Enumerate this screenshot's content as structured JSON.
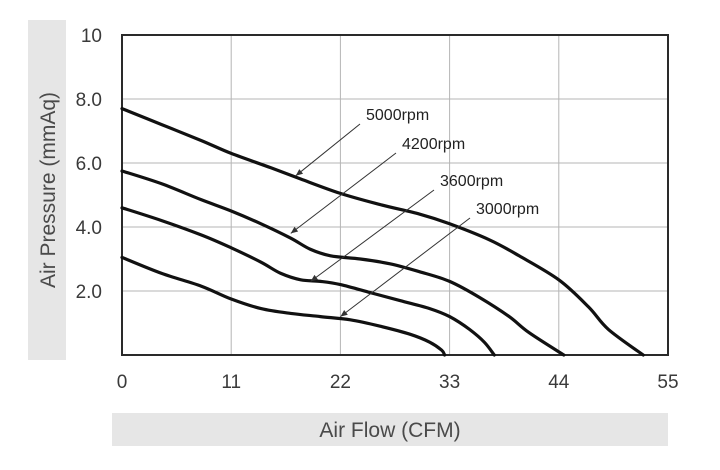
{
  "chart_data": {
    "type": "line",
    "xlabel": "Air Flow (CFM)",
    "ylabel": "Air Pressure (mmAq)",
    "xlim": [
      0,
      55
    ],
    "ylim": [
      0,
      10
    ],
    "x_ticks": [
      {
        "value": 0,
        "label": "0"
      },
      {
        "value": 11,
        "label": "11"
      },
      {
        "value": 22,
        "label": "22"
      },
      {
        "value": 33,
        "label": "33"
      },
      {
        "value": 44,
        "label": "44"
      },
      {
        "value": 55,
        "label": "55"
      }
    ],
    "y_ticks": [
      {
        "value": 2,
        "label": "2.0"
      },
      {
        "value": 4,
        "label": "4.0"
      },
      {
        "value": 6,
        "label": "6.0"
      },
      {
        "value": 8,
        "label": "8.0"
      },
      {
        "value": 10,
        "label": "10"
      }
    ],
    "grid": true,
    "series": [
      {
        "name": "5000rpm",
        "points": [
          [
            0,
            7.7
          ],
          [
            4,
            7.2
          ],
          [
            8,
            6.7
          ],
          [
            11,
            6.3
          ],
          [
            15,
            5.85
          ],
          [
            18,
            5.5
          ],
          [
            22,
            5.05
          ],
          [
            26,
            4.7
          ],
          [
            30,
            4.4
          ],
          [
            33,
            4.1
          ],
          [
            37,
            3.6
          ],
          [
            40,
            3.1
          ],
          [
            44,
            2.35
          ],
          [
            47,
            1.5
          ],
          [
            49,
            0.8
          ],
          [
            52.5,
            0
          ]
        ],
        "annotation": {
          "label": "5000rpm",
          "data_value": [
            17.5,
            5.6
          ]
        }
      },
      {
        "name": "4200rpm",
        "points": [
          [
            0,
            5.75
          ],
          [
            4,
            5.35
          ],
          [
            8,
            4.85
          ],
          [
            11,
            4.5
          ],
          [
            14,
            4.1
          ],
          [
            17,
            3.65
          ],
          [
            19,
            3.3
          ],
          [
            21,
            3.1
          ],
          [
            24,
            3.0
          ],
          [
            27,
            2.85
          ],
          [
            30,
            2.6
          ],
          [
            33,
            2.3
          ],
          [
            36,
            1.8
          ],
          [
            39,
            1.2
          ],
          [
            41,
            0.7
          ],
          [
            44.5,
            0
          ]
        ],
        "annotation": {
          "label": "4200rpm",
          "data_value": [
            17,
            3.8
          ]
        }
      },
      {
        "name": "3600rpm",
        "points": [
          [
            0,
            4.6
          ],
          [
            4,
            4.2
          ],
          [
            8,
            3.75
          ],
          [
            11,
            3.35
          ],
          [
            14,
            2.9
          ],
          [
            16,
            2.55
          ],
          [
            18,
            2.35
          ],
          [
            20,
            2.3
          ],
          [
            22,
            2.2
          ],
          [
            25,
            1.95
          ],
          [
            28,
            1.7
          ],
          [
            31,
            1.45
          ],
          [
            33,
            1.2
          ],
          [
            35,
            0.8
          ],
          [
            36.5,
            0.4
          ],
          [
            37.5,
            0
          ]
        ],
        "annotation": {
          "label": "3600rpm",
          "data_value": [
            19,
            2.3
          ]
        }
      },
      {
        "name": "3000rpm",
        "points": [
          [
            0,
            3.05
          ],
          [
            4,
            2.55
          ],
          [
            8,
            2.15
          ],
          [
            11,
            1.75
          ],
          [
            14,
            1.45
          ],
          [
            17,
            1.3
          ],
          [
            20,
            1.2
          ],
          [
            23,
            1.1
          ],
          [
            26,
            0.9
          ],
          [
            29,
            0.65
          ],
          [
            31,
            0.4
          ],
          [
            32.2,
            0.15
          ],
          [
            32.5,
            0
          ]
        ],
        "annotation": {
          "label": "3000rpm",
          "data_value": [
            22,
            1.2
          ]
        }
      }
    ]
  }
}
